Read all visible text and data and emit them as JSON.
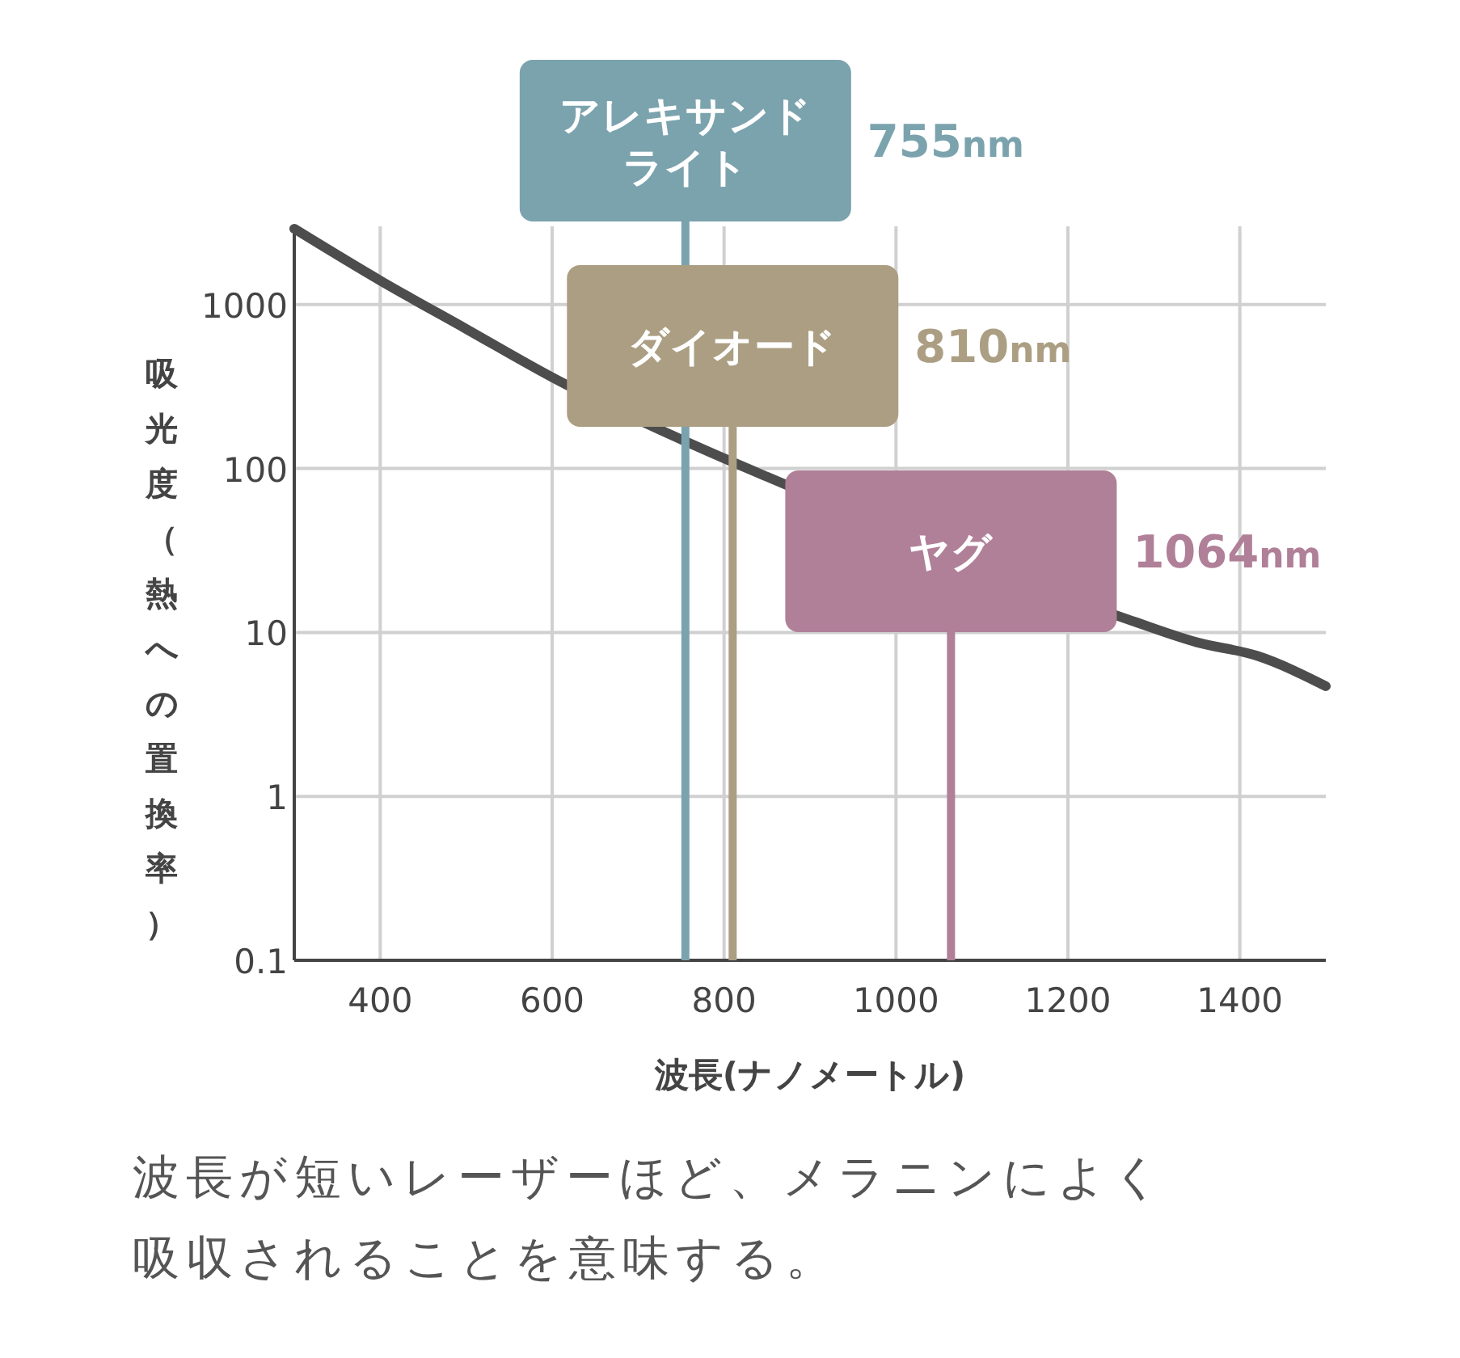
{
  "chart_data": {
    "type": "line",
    "xlabel": "波長(ナノメートル)",
    "ylabel": "吸光度（熱への置換率）",
    "x": [
      300,
      400,
      500,
      600,
      780,
      850,
      1270,
      1350,
      1420,
      1500
    ],
    "series": [
      {
        "color": "#4d4d4d",
        "values": [
          2900,
          1400,
          710,
          360,
          128,
          89,
          12,
          8.7,
          7.2,
          4.7
        ]
      }
    ],
    "xlim": [
      300,
      1500
    ],
    "xticks": [
      400,
      600,
      800,
      1000,
      1200,
      1400
    ],
    "ylim": [
      0.1,
      3000
    ],
    "yticks": [
      0.1,
      1,
      10,
      100,
      1000
    ],
    "log": true,
    "grid": true,
    "marker": "none",
    "line_style": "solid",
    "ref_lines": [
      {
        "axis": "x",
        "value": 755,
        "label": "アレキサンドライト",
        "color": "#7ba3ae"
      },
      {
        "axis": "x",
        "value": 810,
        "label": "ダイオード",
        "color": "#ab9e82"
      },
      {
        "axis": "x",
        "value": 1064,
        "label": "ヤグ",
        "color": "#b07f98"
      }
    ],
    "annotations": [
      "755nm",
      "810nm",
      "1064nm",
      "波長が短いレーザーほど、メラニンによく吸収されることを意味する。"
    ]
  }
}
